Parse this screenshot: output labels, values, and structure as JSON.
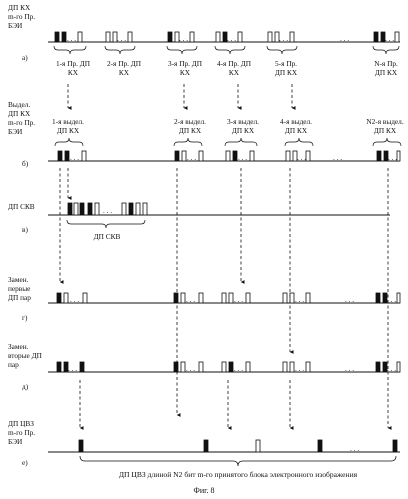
{
  "rows": [
    {
      "id": "a",
      "label_lines": [
        "ДП КХ",
        "m-го Пр.",
        "БЭИ"
      ],
      "letter": "а)"
    },
    {
      "id": "b",
      "label_lines": [
        "Выдел.",
        "ДП КХ",
        "m-го Пр.",
        "БЭИ"
      ],
      "letter": "б)"
    },
    {
      "id": "v",
      "label_lines": [
        "ДП СКВ"
      ],
      "letter": "в)"
    },
    {
      "id": "g",
      "label_lines": [
        "Замен.",
        "первые",
        "ДП пар"
      ],
      "letter": "г)"
    },
    {
      "id": "d",
      "label_lines": [
        "Замен.",
        "вторые ДП",
        "пар"
      ],
      "letter": "д)"
    },
    {
      "id": "e",
      "label_lines": [
        "ДП ЦВЗ",
        "m-го Пр.",
        "БЭИ"
      ],
      "letter": "е)"
    }
  ],
  "row_a_groups": [
    {
      "lines": [
        "1-я Пр. ДП",
        "КХ"
      ]
    },
    {
      "lines": [
        "2-я Пр. ДП",
        "КХ"
      ]
    },
    {
      "lines": [
        "3-я Пр. ДП",
        "КХ"
      ]
    },
    {
      "lines": [
        "4-я Пр. ДП",
        "КХ"
      ]
    },
    {
      "lines": [
        "5-я Пр.",
        "ДП КХ"
      ]
    },
    {
      "lines": [
        "N-я Пр.",
        "ДП КХ"
      ]
    }
  ],
  "row_b_groups": [
    {
      "lines": [
        "1-я выдел.",
        "ДП КХ"
      ]
    },
    {
      "lines": [
        "2-я выдел.",
        "ДП КХ"
      ]
    },
    {
      "lines": [
        "3-я выдел.",
        "ДП КХ"
      ]
    },
    {
      "lines": [
        "4-я выдел.",
        "ДП КХ"
      ]
    },
    {
      "lines": [
        "N2-я выдел.",
        "ДП КХ"
      ]
    }
  ],
  "row_v_caption": "ДП СКВ",
  "bottom_caption": "ДП ЦВЗ длиной N2 бит m-го принятого блока электронного изображения",
  "figure_caption": "Фиг. 8",
  "ellipsis": ". . ."
}
